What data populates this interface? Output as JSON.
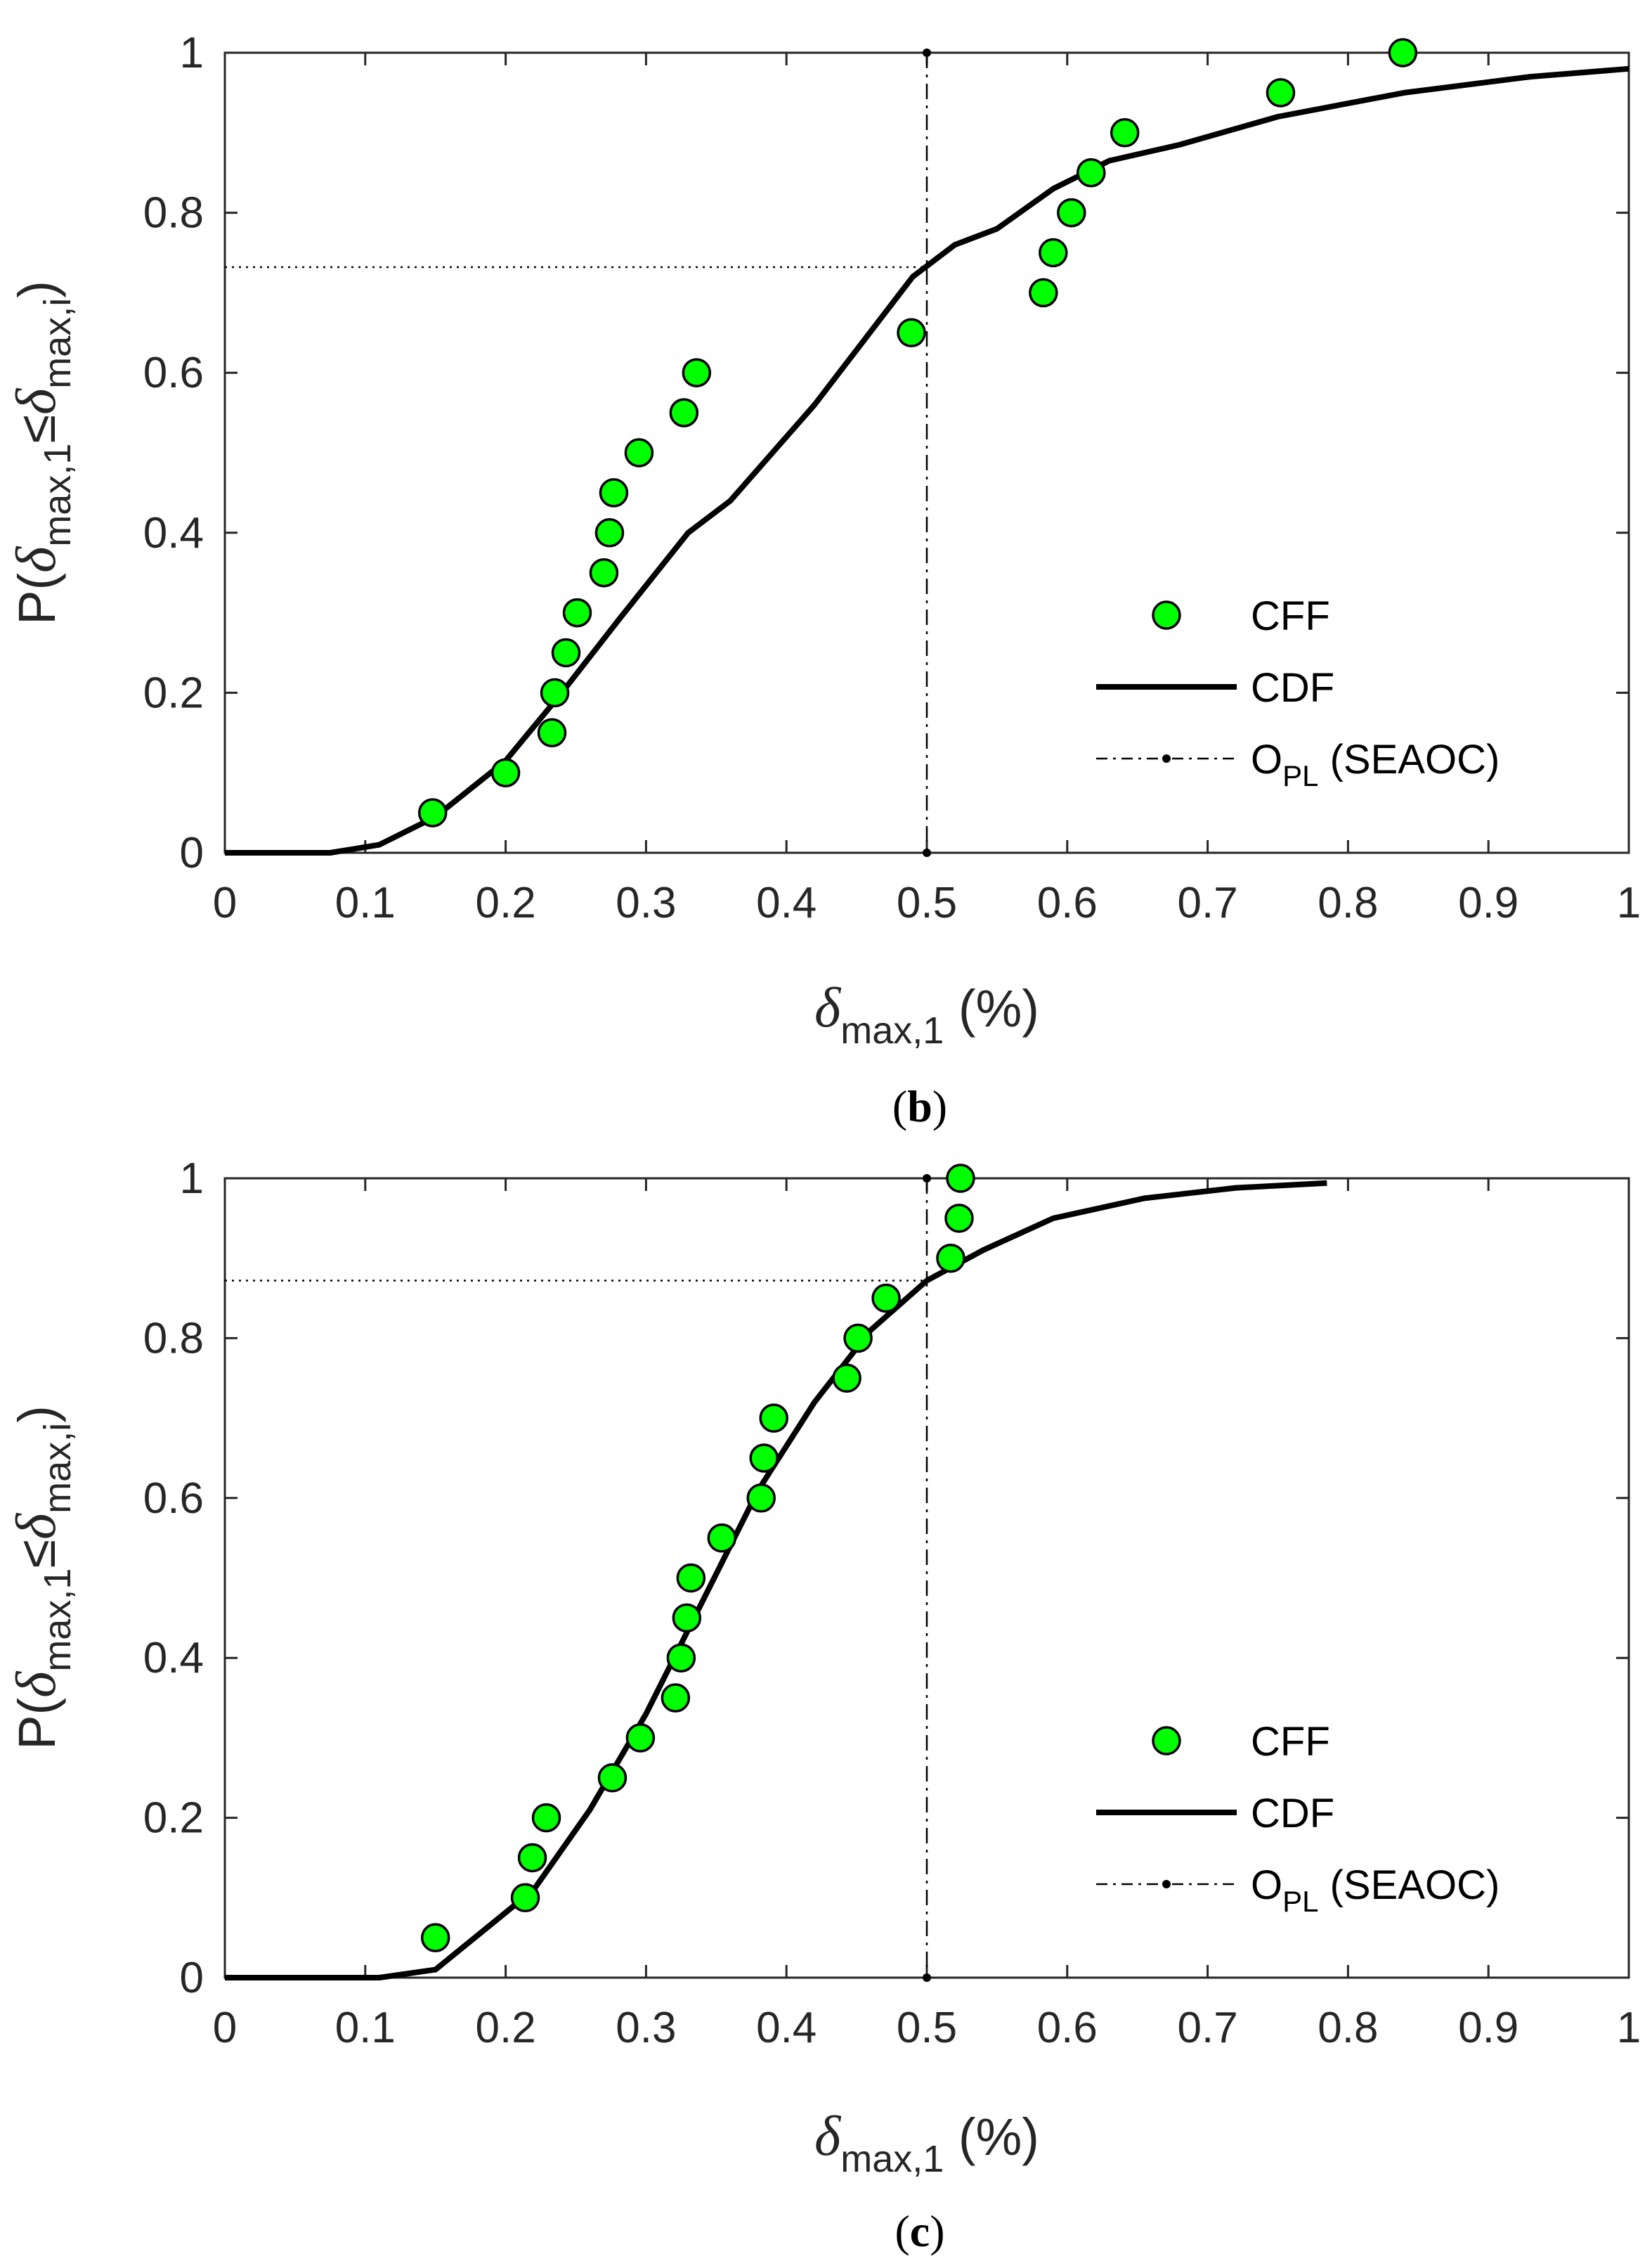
{
  "chart_data": [
    {
      "type": "scatter",
      "panel_label": {
        "open": "(",
        "letter": "b",
        "close": ")"
      },
      "xlabel": {
        "symbol": "δ",
        "subscript": "max,1",
        "unit": " (%)"
      },
      "ylabel": {
        "prefix": "P(",
        "sym1": "δ",
        "sub1": "max,1",
        "rel": "≤",
        "sym2": "δ",
        "sub2": "max,i",
        "suffix": ")"
      },
      "xlim": [
        0,
        1
      ],
      "ylim": [
        0,
        1
      ],
      "xticks": [
        "0",
        "0.1",
        "0.2",
        "0.3",
        "0.4",
        "0.5",
        "0.6",
        "0.7",
        "0.8",
        "0.9",
        "1"
      ],
      "yticks": [
        "0",
        "0.2",
        "0.4",
        "0.6",
        "0.8",
        "1"
      ],
      "legend": {
        "position": "bottom-right",
        "entries": [
          {
            "label": "CFF"
          },
          {
            "label": "CDF"
          },
          {
            "label": "O",
            "sub": "PL",
            "suffix": " (SEAOC)"
          }
        ]
      },
      "colors": {
        "marker": "#00ff00",
        "line": "#000000"
      },
      "series": [
        {
          "name": "CFF",
          "kind": "points",
          "x": [
            0.148,
            0.2,
            0.233,
            0.235,
            0.243,
            0.251,
            0.27,
            0.274,
            0.277,
            0.295,
            0.327,
            0.336,
            0.489,
            0.583,
            0.59,
            0.603,
            0.617,
            0.641,
            0.752,
            0.839
          ],
          "y": [
            0.05,
            0.1,
            0.15,
            0.2,
            0.25,
            0.3,
            0.35,
            0.4,
            0.45,
            0.5,
            0.55,
            0.6,
            0.65,
            0.7,
            0.75,
            0.8,
            0.85,
            0.9,
            0.95,
            1.0
          ]
        },
        {
          "name": "CDF",
          "kind": "line",
          "x": [
            0,
            0.075,
            0.11,
            0.15,
            0.2,
            0.24,
            0.28,
            0.33,
            0.36,
            0.42,
            0.49,
            0.52,
            0.55,
            0.59,
            0.63,
            0.68,
            0.75,
            0.84,
            0.93,
            1.0
          ],
          "y": [
            0,
            0,
            0.01,
            0.045,
            0.115,
            0.2,
            0.29,
            0.4,
            0.44,
            0.56,
            0.72,
            0.76,
            0.78,
            0.83,
            0.865,
            0.885,
            0.92,
            0.95,
            0.97,
            0.98
          ]
        },
        {
          "name": "O_PL (SEAOC)",
          "kind": "vline",
          "x": 0.5,
          "y_cross": 0.732
        }
      ]
    },
    {
      "type": "scatter",
      "panel_label": {
        "open": "(",
        "letter": "c",
        "close": ")"
      },
      "xlabel": {
        "symbol": "δ",
        "subscript": "max,1",
        "unit": " (%)"
      },
      "ylabel": {
        "prefix": "P(",
        "sym1": "δ",
        "sub1": "max,1",
        "rel": "≤",
        "sym2": "δ",
        "sub2": "max,i",
        "suffix": ")"
      },
      "xlim": [
        0,
        1
      ],
      "ylim": [
        0,
        1
      ],
      "xticks": [
        "0",
        "0.1",
        "0.2",
        "0.3",
        "0.4",
        "0.5",
        "0.6",
        "0.7",
        "0.8",
        "0.9",
        "1"
      ],
      "yticks": [
        "0",
        "0.2",
        "0.4",
        "0.6",
        "0.8",
        "1"
      ],
      "legend": {
        "position": "bottom-right",
        "entries": [
          {
            "label": "CFF"
          },
          {
            "label": "CDF"
          },
          {
            "label": "O",
            "sub": "PL",
            "suffix": " (SEAOC)"
          }
        ]
      },
      "colors": {
        "marker": "#00ff00",
        "line": "#000000"
      },
      "series": [
        {
          "name": "CFF",
          "kind": "points",
          "x": [
            0.15,
            0.214,
            0.219,
            0.229,
            0.276,
            0.296,
            0.321,
            0.325,
            0.329,
            0.332,
            0.354,
            0.382,
            0.384,
            0.391,
            0.443,
            0.451,
            0.471,
            0.517,
            0.523,
            0.524
          ],
          "y": [
            0.05,
            0.1,
            0.15,
            0.2,
            0.25,
            0.3,
            0.35,
            0.4,
            0.45,
            0.5,
            0.55,
            0.6,
            0.65,
            0.7,
            0.75,
            0.8,
            0.85,
            0.9,
            0.95,
            1.0
          ]
        },
        {
          "name": "CDF",
          "kind": "line",
          "x": [
            0,
            0.11,
            0.15,
            0.22,
            0.26,
            0.3,
            0.34,
            0.38,
            0.42,
            0.46,
            0.5,
            0.54,
            0.59,
            0.655,
            0.72,
            0.785
          ],
          "y": [
            0,
            0,
            0.01,
            0.11,
            0.21,
            0.33,
            0.47,
            0.61,
            0.72,
            0.81,
            0.872,
            0.91,
            0.95,
            0.975,
            0.988,
            0.994
          ]
        },
        {
          "name": "O_PL (SEAOC)",
          "kind": "vline",
          "x": 0.5,
          "y_cross": 0.872
        }
      ]
    }
  ]
}
